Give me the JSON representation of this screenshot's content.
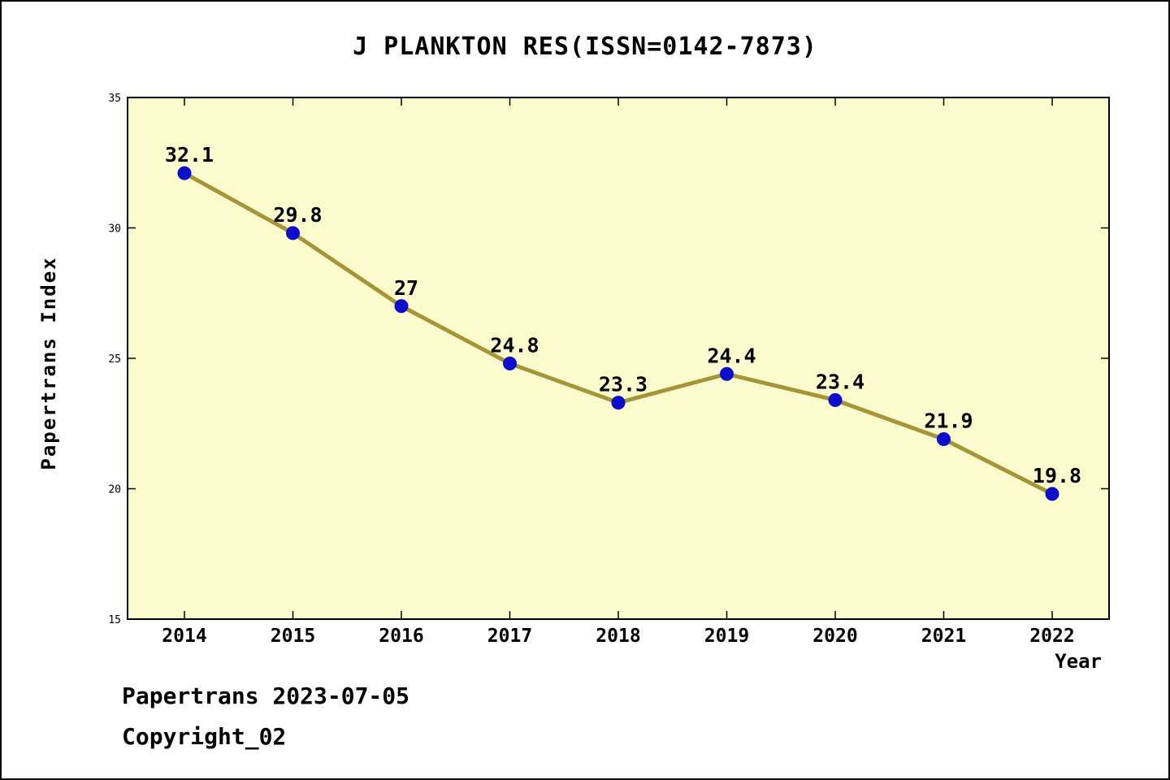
{
  "chart_data": {
    "type": "line",
    "title": "J PLANKTON RES(ISSN=0142-7873)",
    "xlabel": "Year",
    "ylabel": "Papertrans Index",
    "x": [
      2014,
      2015,
      2016,
      2017,
      2018,
      2019,
      2020,
      2021,
      2022
    ],
    "values": [
      32.1,
      29.8,
      27,
      24.8,
      23.3,
      24.4,
      23.4,
      21.9,
      19.8
    ],
    "point_labels": [
      "32.1",
      "29.8",
      "27",
      "24.8",
      "23.3",
      "24.4",
      "23.4",
      "21.9",
      "19.8"
    ],
    "ylim": [
      15,
      35
    ],
    "yticks": [
      15,
      20,
      25,
      30,
      35
    ],
    "grid": false,
    "legend": "none",
    "colors": {
      "plot_background": "#FBFBCE",
      "line": "#A69537",
      "point": "#0D0DCC",
      "axis": "#000000",
      "text": "#000000"
    }
  },
  "footer": {
    "line1": "Papertrans 2023-07-05",
    "line2": "Copyright_02"
  }
}
